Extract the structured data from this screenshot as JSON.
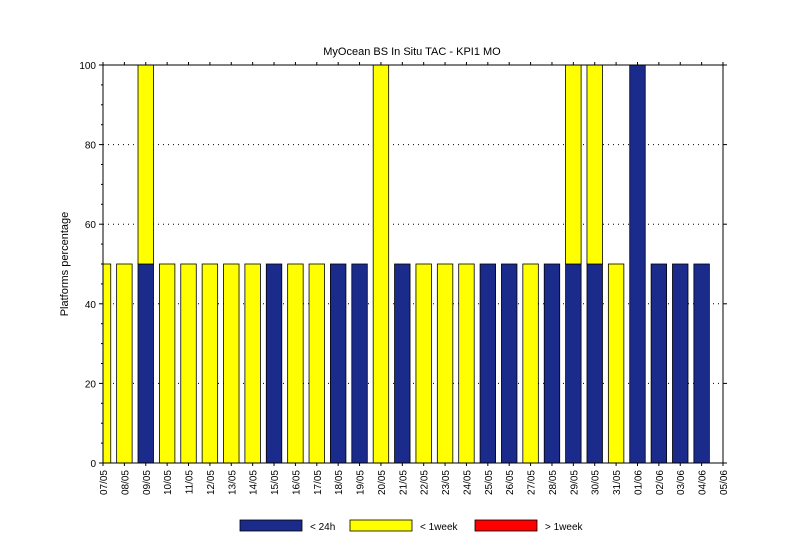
{
  "chart_data": {
    "type": "bar",
    "stacked": true,
    "title": "MyOcean  BS In Situ TAC - KPI1  MO",
    "ylabel": "Platforms percentage",
    "xlabel": "",
    "ylim": [
      0,
      100
    ],
    "yticks": [
      0,
      20,
      40,
      60,
      80,
      100
    ],
    "grid": "horizontal dotted",
    "legend_position": "bottom",
    "categories": [
      "07/05",
      "08/05",
      "09/05",
      "10/05",
      "11/05",
      "12/05",
      "13/05",
      "14/05",
      "15/05",
      "16/05",
      "17/05",
      "18/05",
      "19/05",
      "20/05",
      "21/05",
      "22/05",
      "23/05",
      "24/05",
      "25/05",
      "26/05",
      "27/05",
      "28/05",
      "29/05",
      "30/05",
      "31/05",
      "01/06",
      "02/06",
      "03/06",
      "04/06",
      "05/06"
    ],
    "series": [
      {
        "name": "< 24h",
        "color": "#1a2b8c",
        "values": [
          0,
          0,
          50,
          0,
          0,
          0,
          0,
          0,
          50,
          0,
          0,
          50,
          50,
          0,
          50,
          0,
          0,
          0,
          50,
          50,
          0,
          50,
          50,
          50,
          0,
          100,
          50,
          50,
          50,
          0
        ]
      },
      {
        "name": "< 1week",
        "color": "#ffff00",
        "values": [
          50,
          50,
          50,
          50,
          50,
          50,
          50,
          50,
          0,
          50,
          50,
          0,
          0,
          100,
          0,
          50,
          50,
          50,
          0,
          0,
          50,
          0,
          50,
          50,
          50,
          0,
          0,
          0,
          0,
          0
        ]
      },
      {
        "name": "> 1week",
        "color": "#ff0000",
        "values": [
          0,
          0,
          0,
          0,
          0,
          0,
          0,
          0,
          0,
          0,
          0,
          0,
          0,
          0,
          0,
          0,
          0,
          0,
          0,
          0,
          0,
          0,
          0,
          0,
          0,
          0,
          0,
          0,
          0,
          0
        ]
      }
    ]
  }
}
